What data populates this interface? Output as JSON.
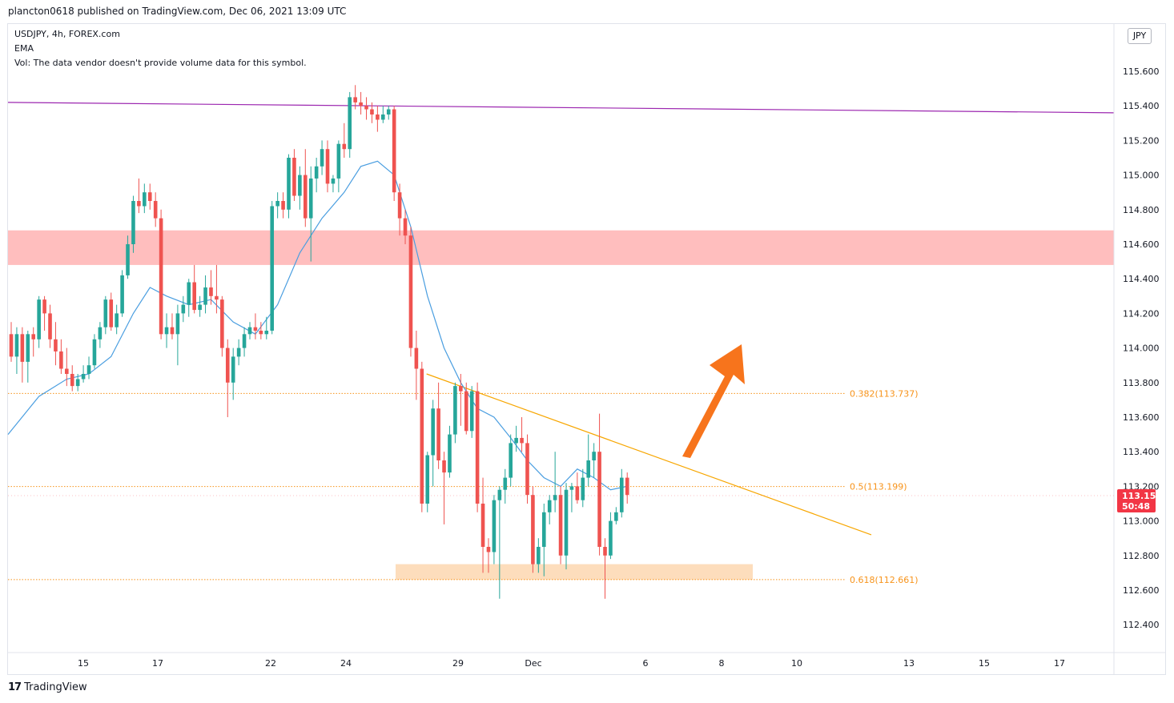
{
  "header": {
    "published": "plancton0618 published on TradingView.com, Dec 06, 2021 13:09 UTC"
  },
  "legend": {
    "symbol": "USDJPY, 4h, FOREX.com",
    "indicator": "EMA",
    "volume_note": "Vol: The data vendor doesn't provide volume data for this symbol."
  },
  "currency_button": "JPY",
  "footer": {
    "brand": "TradingView"
  },
  "price_tag": {
    "price": "113.151",
    "countdown": "50:48",
    "color": "#f23645"
  },
  "colors": {
    "up": "#26a69a",
    "down": "#ef5350",
    "ema": "#4a9ee0",
    "resistance": "#9c27b0",
    "trendline": "#f7a600",
    "fib": "#f7931a",
    "zone_red": "#ffb3b3",
    "zone_orange": "#fdd7b0",
    "arrow": "#f7741c"
  },
  "chart_data": {
    "type": "candlestick",
    "symbol": "USDJPY",
    "timeframe": "4h",
    "ylim": [
      112.25,
      116.0
    ],
    "x_ticks": [
      "15",
      "17",
      "22",
      "24",
      "29",
      "Dec",
      "6",
      "8",
      "10",
      "13",
      "15",
      "17"
    ],
    "y_ticks": [
      "112.400",
      "112.600",
      "112.800",
      "113.000",
      "113.200",
      "113.400",
      "113.600",
      "113.800",
      "114.000",
      "114.200",
      "114.400",
      "114.600",
      "114.800",
      "115.000",
      "115.200",
      "115.400",
      "115.600"
    ],
    "candles": [
      [
        114.08,
        114.15,
        113.92,
        113.95
      ],
      [
        113.95,
        114.12,
        113.85,
        114.08
      ],
      [
        114.08,
        114.12,
        113.8,
        113.92
      ],
      [
        113.92,
        114.1,
        113.8,
        114.08
      ],
      [
        114.08,
        114.12,
        113.95,
        114.05
      ],
      [
        114.05,
        114.3,
        114.0,
        114.28
      ],
      [
        114.28,
        114.3,
        114.1,
        114.2
      ],
      [
        114.2,
        114.25,
        114.0,
        114.05
      ],
      [
        114.05,
        114.15,
        113.9,
        113.98
      ],
      [
        113.98,
        114.05,
        113.85,
        113.88
      ],
      [
        113.88,
        114.0,
        113.78,
        113.85
      ],
      [
        113.85,
        113.9,
        113.75,
        113.78
      ],
      [
        113.78,
        113.85,
        113.75,
        113.82
      ],
      [
        113.82,
        113.9,
        113.8,
        113.85
      ],
      [
        113.85,
        113.95,
        113.82,
        113.9
      ],
      [
        113.9,
        114.08,
        113.88,
        114.05
      ],
      [
        114.05,
        114.15,
        114.0,
        114.12
      ],
      [
        114.12,
        114.3,
        114.08,
        114.28
      ],
      [
        114.28,
        114.32,
        114.1,
        114.12
      ],
      [
        114.12,
        114.25,
        114.08,
        114.2
      ],
      [
        114.2,
        114.45,
        114.18,
        114.42
      ],
      [
        114.42,
        114.65,
        114.4,
        114.6
      ],
      [
        114.6,
        114.88,
        114.55,
        114.85
      ],
      [
        114.85,
        114.98,
        114.78,
        114.82
      ],
      [
        114.82,
        114.95,
        114.78,
        114.9
      ],
      [
        114.9,
        114.95,
        114.8,
        114.85
      ],
      [
        114.85,
        114.9,
        114.7,
        114.75
      ],
      [
        114.75,
        114.8,
        114.05,
        114.08
      ],
      [
        114.08,
        114.2,
        114.0,
        114.12
      ],
      [
        114.12,
        114.2,
        114.05,
        114.08
      ],
      [
        114.08,
        114.25,
        113.9,
        114.2
      ],
      [
        114.2,
        114.3,
        114.15,
        114.25
      ],
      [
        114.25,
        114.4,
        114.18,
        114.38
      ],
      [
        114.38,
        114.48,
        114.2,
        114.22
      ],
      [
        114.22,
        114.3,
        114.18,
        114.25
      ],
      [
        114.25,
        114.42,
        114.2,
        114.35
      ],
      [
        114.35,
        114.45,
        114.25,
        114.3
      ],
      [
        114.3,
        114.48,
        114.2,
        114.28
      ],
      [
        114.28,
        114.3,
        113.95,
        114.0
      ],
      [
        114.0,
        114.05,
        113.6,
        113.8
      ],
      [
        113.8,
        114.0,
        113.7,
        113.95
      ],
      [
        113.95,
        114.05,
        113.9,
        114.0
      ],
      [
        114.0,
        114.12,
        113.95,
        114.08
      ],
      [
        114.08,
        114.15,
        114.05,
        114.12
      ],
      [
        114.12,
        114.2,
        114.05,
        114.1
      ],
      [
        114.1,
        114.15,
        114.05,
        114.08
      ],
      [
        114.08,
        114.18,
        114.05,
        114.1
      ],
      [
        114.1,
        114.85,
        114.08,
        114.82
      ],
      [
        114.82,
        114.9,
        114.75,
        114.85
      ],
      [
        114.85,
        114.9,
        114.75,
        114.8
      ],
      [
        114.8,
        115.12,
        114.75,
        115.1
      ],
      [
        115.1,
        115.15,
        114.85,
        114.88
      ],
      [
        114.88,
        115.05,
        114.8,
        115.0
      ],
      [
        115.0,
        115.15,
        114.7,
        114.75
      ],
      [
        114.75,
        115.05,
        114.5,
        114.98
      ],
      [
        114.98,
        115.1,
        114.9,
        115.05
      ],
      [
        115.05,
        115.2,
        115.0,
        115.15
      ],
      [
        115.15,
        115.2,
        114.9,
        114.95
      ],
      [
        114.95,
        115.0,
        114.9,
        114.98
      ],
      [
        114.98,
        115.2,
        114.9,
        115.18
      ],
      [
        115.18,
        115.3,
        115.1,
        115.15
      ],
      [
        115.15,
        115.48,
        115.1,
        115.45
      ],
      [
        115.45,
        115.52,
        115.38,
        115.42
      ],
      [
        115.42,
        115.48,
        115.35,
        115.4
      ],
      [
        115.4,
        115.45,
        115.32,
        115.38
      ],
      [
        115.38,
        115.42,
        115.3,
        115.35
      ],
      [
        115.35,
        115.4,
        115.25,
        115.32
      ],
      [
        115.32,
        115.4,
        115.3,
        115.35
      ],
      [
        115.35,
        115.4,
        115.32,
        115.38
      ],
      [
        115.38,
        115.4,
        114.85,
        114.9
      ],
      [
        114.9,
        114.95,
        114.65,
        114.75
      ],
      [
        114.75,
        114.8,
        114.6,
        114.65
      ],
      [
        114.65,
        114.7,
        113.95,
        114.0
      ],
      [
        114.0,
        114.1,
        113.7,
        113.88
      ],
      [
        113.88,
        113.92,
        113.05,
        113.1
      ],
      [
        113.1,
        113.4,
        113.05,
        113.38
      ],
      [
        113.38,
        113.7,
        113.2,
        113.65
      ],
      [
        113.65,
        113.8,
        113.3,
        113.35
      ],
      [
        113.35,
        113.4,
        112.98,
        113.28
      ],
      [
        113.28,
        113.55,
        113.25,
        113.5
      ],
      [
        113.5,
        113.8,
        113.45,
        113.78
      ],
      [
        113.78,
        113.85,
        113.55,
        113.75
      ],
      [
        113.75,
        113.8,
        113.5,
        113.52
      ],
      [
        113.52,
        113.78,
        113.48,
        113.75
      ],
      [
        113.75,
        113.8,
        113.05,
        113.1
      ],
      [
        113.1,
        113.25,
        112.7,
        112.85
      ],
      [
        112.85,
        112.9,
        112.7,
        112.82
      ],
      [
        112.82,
        113.15,
        112.75,
        113.12
      ],
      [
        113.12,
        113.2,
        112.55,
        113.18
      ],
      [
        113.18,
        113.3,
        113.1,
        113.25
      ],
      [
        113.25,
        113.5,
        113.2,
        113.45
      ],
      [
        113.45,
        113.55,
        113.4,
        113.48
      ],
      [
        113.48,
        113.6,
        113.4,
        113.45
      ],
      [
        113.45,
        113.5,
        113.1,
        113.15
      ],
      [
        113.15,
        113.2,
        112.7,
        112.75
      ],
      [
        112.75,
        112.9,
        112.7,
        112.85
      ],
      [
        112.85,
        113.1,
        112.68,
        113.05
      ],
      [
        113.05,
        113.15,
        112.98,
        113.12
      ],
      [
        113.12,
        113.4,
        113.05,
        113.15
      ],
      [
        113.15,
        113.2,
        112.75,
        112.8
      ],
      [
        112.8,
        113.22,
        112.72,
        113.18
      ],
      [
        113.18,
        113.22,
        113.05,
        113.2
      ],
      [
        113.2,
        113.28,
        113.1,
        113.12
      ],
      [
        113.12,
        113.3,
        113.08,
        113.25
      ],
      [
        113.25,
        113.5,
        113.2,
        113.35
      ],
      [
        113.35,
        113.45,
        113.25,
        113.4
      ],
      [
        113.4,
        113.62,
        112.8,
        112.85
      ],
      [
        112.85,
        112.9,
        112.55,
        112.8
      ],
      [
        112.8,
        113.05,
        112.78,
        113.0
      ],
      [
        113.0,
        113.08,
        112.98,
        113.05
      ],
      [
        113.05,
        113.3,
        113.02,
        113.25
      ],
      [
        113.25,
        113.28,
        113.1,
        113.15
      ]
    ],
    "ema": [
      [
        0,
        113.5
      ],
      [
        5,
        113.72
      ],
      [
        10,
        113.82
      ],
      [
        14,
        113.85
      ],
      [
        18,
        113.95
      ],
      [
        22,
        114.2
      ],
      [
        25,
        114.35
      ],
      [
        28,
        114.3
      ],
      [
        32,
        114.25
      ],
      [
        36,
        114.28
      ],
      [
        40,
        114.15
      ],
      [
        44,
        114.08
      ],
      [
        48,
        114.25
      ],
      [
        52,
        114.55
      ],
      [
        56,
        114.75
      ],
      [
        60,
        114.9
      ],
      [
        63,
        115.05
      ],
      [
        66,
        115.08
      ],
      [
        69,
        115.0
      ],
      [
        72,
        114.7
      ],
      [
        75,
        114.3
      ],
      [
        78,
        114.0
      ],
      [
        81,
        113.8
      ],
      [
        84,
        113.65
      ],
      [
        87,
        113.6
      ],
      [
        90,
        113.48
      ],
      [
        93,
        113.35
      ],
      [
        96,
        113.25
      ],
      [
        99,
        113.2
      ],
      [
        102,
        113.3
      ],
      [
        105,
        113.25
      ],
      [
        108,
        113.18
      ],
      [
        111,
        113.2
      ]
    ],
    "resistance_line": {
      "from": [
        0,
        115.42
      ],
      "to": [
        1466,
        115.36
      ]
    },
    "trendline": {
      "from_index": 76,
      "from_price": 113.85,
      "to_price": 112.92
    },
    "zones": [
      {
        "name": "supply-zone",
        "top": 114.68,
        "bottom": 114.48
      },
      {
        "name": "demand-zone",
        "top": 112.75,
        "bottom": 112.66
      }
    ],
    "fib_levels": [
      {
        "label": "0.382(113.737)",
        "price": 113.737
      },
      {
        "label": "0.5(113.199)",
        "price": 113.199
      },
      {
        "label": "0.618(112.661)",
        "price": 112.661
      }
    ],
    "annotation": "arrow-up"
  }
}
